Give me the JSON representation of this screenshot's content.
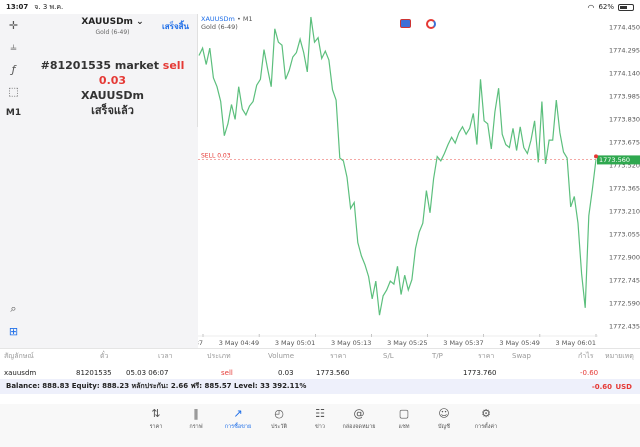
{
  "status_bar": {
    "time": "13:07",
    "date": "จ. 3 พ.ค.",
    "wifi_icon": "wifi-icon",
    "battery_pct": "62%",
    "battery_level": 0.62
  },
  "toolbar": {
    "items": [
      "crosshair-icon",
      "indicators-icon",
      "function-icon",
      "objects-icon",
      "M1"
    ],
    "bottom": [
      "search-chart-icon",
      "trade-panel-icon"
    ]
  },
  "order_panel": {
    "symbol": "XAUUSDm",
    "description": "Gold (6-49)",
    "done_label": "เสร็จสิ้น",
    "message_ticket": "#81201535 market",
    "message_type": "sell 0.03",
    "message_symbol": "XAUUSDm",
    "message_status": "เสร็จแล้ว"
  },
  "chart": {
    "title_symbol": "XAUUSDm",
    "title_tf": " • M1",
    "subtitle": "Gold (6-49)",
    "sell_line_label": "SELL 0.03",
    "current_price": "1773.560",
    "colors": {
      "line": "#5cbf7d",
      "sell": "#e53935",
      "price_tag": "#2fa84f"
    }
  },
  "chart_data": {
    "type": "line",
    "x_ticks": [
      "3 May 04:37",
      "3 May 04:49",
      "3 May 05:01",
      "3 May 05:13",
      "3 May 05:25",
      "3 May 05:37",
      "3 May 05:49",
      "3 May 06:01"
    ],
    "y_ticks": [
      "1774.450",
      "1774.295",
      "1774.140",
      "1773.985",
      "1773.830",
      "1773.675",
      "1773.520",
      "1773.365",
      "1773.210",
      "1773.055",
      "1772.900",
      "1772.745",
      "1772.590",
      "1772.435"
    ],
    "ylim": [
      1772.37,
      1774.54
    ],
    "values": [
      1774.26,
      1774.31,
      1774.2,
      1774.31,
      1774.11,
      1774.05,
      1773.95,
      1773.72,
      1773.8,
      1773.93,
      1773.83,
      1774.05,
      1773.9,
      1773.86,
      1773.92,
      1773.95,
      1774.06,
      1774.1,
      1774.3,
      1774.17,
      1774.05,
      1774.44,
      1774.35,
      1774.33,
      1774.1,
      1774.16,
      1774.25,
      1774.28,
      1774.37,
      1774.28,
      1774.15,
      1774.52,
      1774.35,
      1774.38,
      1774.24,
      1774.29,
      1774.23,
      1774.03,
      1773.96,
      1773.57,
      1773.55,
      1773.44,
      1773.23,
      1773.27,
      1773.0,
      1772.91,
      1772.85,
      1772.77,
      1772.62,
      1772.74,
      1772.51,
      1772.64,
      1772.68,
      1772.74,
      1772.72,
      1772.84,
      1772.65,
      1772.78,
      1772.68,
      1772.75,
      1772.96,
      1773.07,
      1773.13,
      1773.35,
      1773.2,
      1773.43,
      1773.58,
      1773.55,
      1773.6,
      1773.66,
      1773.71,
      1773.67,
      1773.74,
      1773.78,
      1773.73,
      1773.77,
      1773.87,
      1773.66,
      1774.1,
      1773.82,
      1773.8,
      1773.63,
      1773.88,
      1774.04,
      1773.73,
      1773.66,
      1773.64,
      1773.77,
      1773.62,
      1773.78,
      1773.64,
      1773.6,
      1773.69,
      1773.82,
      1773.54,
      1773.95,
      1773.53,
      1773.69,
      1773.69,
      1773.96,
      1773.74,
      1773.61,
      1773.57,
      1773.24,
      1773.31,
      1773.13,
      1772.79,
      1772.56,
      1773.18,
      1773.36,
      1773.56
    ],
    "sell_price": 1773.56
  },
  "positions": {
    "headers": [
      "สัญลักษณ์",
      "ตั๋ว",
      "เวลา",
      "ประเภท",
      "Volume",
      "ราคา",
      "S/L",
      "T/P",
      "ราคา",
      "Swap",
      "กำไร",
      "หมายเหตุ"
    ],
    "rows": [
      {
        "symbol": "xauusdm",
        "ticket": "81201535",
        "time": "05.03 06:07",
        "type": "sell",
        "volume": "0.03",
        "price": "1773.560",
        "sl": "",
        "tp": "",
        "current": "1773.760",
        "swap": "",
        "profit": "-0.60",
        "comment": ""
      }
    ],
    "balance_line": "Balance: 888.83 Equity: 888.23 หลักประกัน: 2.66 ฟรี: 885.57 Level: 33 392.11%",
    "total_profit": "-0.60",
    "currency": "USD"
  },
  "tabbar": [
    {
      "label": "ราคา",
      "icon": "quotes-icon"
    },
    {
      "label": "กราฟ",
      "icon": "chart-icon"
    },
    {
      "label": "การซื้อขาย",
      "icon": "trade-icon"
    },
    {
      "label": "ประวัติ",
      "icon": "history-icon"
    },
    {
      "label": "ข่าว",
      "icon": "news-icon"
    },
    {
      "label": "กล่องจดหมาย",
      "icon": "mail-icon"
    },
    {
      "label": "แชท",
      "icon": "chat-icon"
    },
    {
      "label": "บัญชี",
      "icon": "account-icon"
    },
    {
      "label": "การตั้งค่า",
      "icon": "settings-icon"
    }
  ],
  "active_tab": 2
}
